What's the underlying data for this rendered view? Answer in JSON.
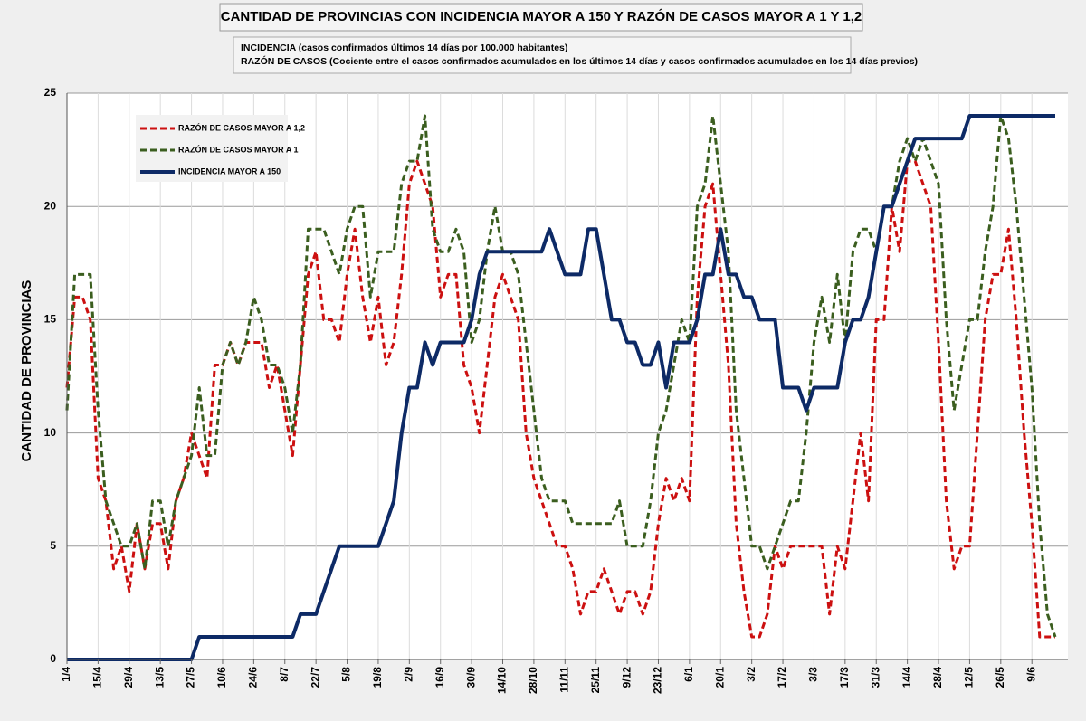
{
  "chart_data": {
    "type": "line",
    "title": "CANTIDAD DE PROVINCIAS CON INCIDENCIA MAYOR A 150 Y RAZÓN DE CASOS MAYOR A 1 Y 1,2",
    "subtitle": [
      "INCIDENCIA (casos confirmados últimos 14 días por 100.000  habitantes)",
      "RAZÓN DE CASOS (Cociente entre el casos confirmados acumulados en los últimos 14 días y casos confirmados acumulados en los 14 días previos)"
    ],
    "y_label": "CANTIDAD DE PROVINCIAS",
    "categories": [
      "1/4",
      null,
      null,
      null,
      "15/4",
      null,
      null,
      null,
      "29/4",
      null,
      null,
      null,
      "13/5",
      null,
      null,
      null,
      "27/5",
      null,
      null,
      null,
      "10/6",
      null,
      null,
      null,
      "24/6",
      null,
      null,
      null,
      "8/7",
      null,
      null,
      null,
      "22/7",
      null,
      null,
      null,
      "5/8",
      null,
      null,
      null,
      "19/8",
      null,
      null,
      null,
      "2/9",
      null,
      null,
      null,
      "16/9",
      null,
      null,
      null,
      "30/9",
      null,
      null,
      null,
      "14/10",
      null,
      null,
      null,
      "28/10",
      null,
      null,
      null,
      "11/11",
      null,
      null,
      null,
      "25/11",
      null,
      null,
      null,
      "9/12",
      null,
      null,
      null,
      "23/12",
      null,
      null,
      null,
      "6/1",
      null,
      null,
      null,
      "20/1",
      null,
      null,
      null,
      "3/2",
      null,
      null,
      null,
      "17/2",
      null,
      null,
      null,
      "3/3",
      null,
      null,
      null,
      "17/3",
      null,
      null,
      null,
      "31/3",
      null,
      null,
      null,
      "14/4",
      null,
      null,
      null,
      "28/4",
      null,
      null,
      null,
      "12/5",
      null,
      null,
      null,
      "26/5",
      null,
      null,
      null,
      "9/6",
      null,
      null,
      null
    ],
    "series": [
      {
        "name": "RAZÓN DE CASOS MAYOR A 1,2",
        "color": "#cc1010",
        "dashed": true,
        "values": [
          12,
          16,
          16,
          15,
          8,
          7,
          4,
          5,
          3,
          6,
          4,
          6,
          6,
          4,
          7,
          8,
          10,
          9,
          8,
          13,
          13,
          14,
          13,
          14,
          14,
          14,
          12,
          13,
          11,
          9,
          13,
          17,
          18,
          15,
          15,
          14,
          17,
          19,
          16,
          14,
          16,
          13,
          14,
          17,
          21,
          22,
          21,
          20,
          16,
          17,
          17,
          13,
          12,
          10,
          13,
          16,
          17,
          16,
          15,
          10,
          8,
          7,
          6,
          5,
          5,
          4,
          2,
          3,
          3,
          4,
          3,
          2,
          3,
          3,
          2,
          3,
          6,
          8,
          7,
          8,
          7,
          16,
          20,
          21,
          17,
          13,
          6,
          3,
          1,
          1,
          2,
          5,
          4,
          5,
          5,
          5,
          5,
          5,
          2,
          5,
          4,
          7,
          10,
          7,
          15,
          15,
          20,
          18,
          22,
          22,
          21,
          20,
          14,
          7,
          4,
          5,
          5,
          10,
          15,
          17,
          17,
          19,
          15,
          10,
          6,
          1,
          1,
          1
        ]
      },
      {
        "name": "RAZÓN DE CASOS MAYOR A 1",
        "color": "#3b5e1f",
        "dashed": true,
        "values": [
          11,
          17,
          17,
          17,
          11,
          7,
          6,
          5,
          5,
          6,
          4,
          7,
          7,
          5,
          7,
          8,
          9,
          12,
          9,
          9,
          13,
          14,
          13,
          14,
          16,
          15,
          13,
          13,
          12,
          10,
          13,
          19,
          19,
          19,
          18,
          17,
          19,
          20,
          20,
          16,
          18,
          18,
          18,
          21,
          22,
          22,
          24,
          19,
          18,
          18,
          19,
          18,
          14,
          15,
          18,
          20,
          18,
          18,
          17,
          14,
          11,
          8,
          7,
          7,
          7,
          6,
          6,
          6,
          6,
          6,
          6,
          7,
          5,
          5,
          5,
          7,
          10,
          11,
          13,
          15,
          14,
          20,
          21,
          24,
          21,
          18,
          11,
          8,
          5,
          5,
          4,
          5,
          6,
          7,
          7,
          10,
          14,
          16,
          14,
          17,
          14,
          18,
          19,
          19,
          18,
          20,
          20,
          22,
          23,
          22,
          23,
          22,
          21,
          15,
          11,
          13,
          15,
          15,
          18,
          20,
          24,
          23,
          20,
          16,
          12,
          6,
          2,
          1
        ]
      },
      {
        "name": "INCIDENCIA MAYOR A 150",
        "color": "#0d2a66",
        "dashed": false,
        "values": [
          0,
          0,
          0,
          0,
          0,
          0,
          0,
          0,
          0,
          0,
          0,
          0,
          0,
          0,
          0,
          0,
          0,
          1,
          1,
          1,
          1,
          1,
          1,
          1,
          1,
          1,
          1,
          1,
          1,
          1,
          2,
          2,
          2,
          3,
          4,
          5,
          5,
          5,
          5,
          5,
          5,
          6,
          7,
          10,
          12,
          12,
          14,
          13,
          14,
          14,
          14,
          14,
          15,
          17,
          18,
          18,
          18,
          18,
          18,
          18,
          18,
          18,
          19,
          18,
          17,
          17,
          17,
          19,
          19,
          17,
          15,
          15,
          14,
          14,
          13,
          13,
          14,
          12,
          14,
          14,
          14,
          15,
          17,
          17,
          19,
          17,
          17,
          16,
          16,
          15,
          15,
          15,
          12,
          12,
          12,
          11,
          12,
          12,
          12,
          12,
          14,
          15,
          15,
          16,
          18,
          20,
          20,
          21,
          22,
          23,
          23,
          23,
          23,
          23,
          23,
          23,
          24,
          24,
          24,
          24,
          24,
          24,
          24,
          24,
          24,
          24,
          24,
          24
        ]
      }
    ],
    "ylim": [
      0,
      25
    ],
    "yticks": [
      0,
      5,
      10,
      15,
      20,
      25
    ],
    "grid": true,
    "legend": "upper left"
  }
}
